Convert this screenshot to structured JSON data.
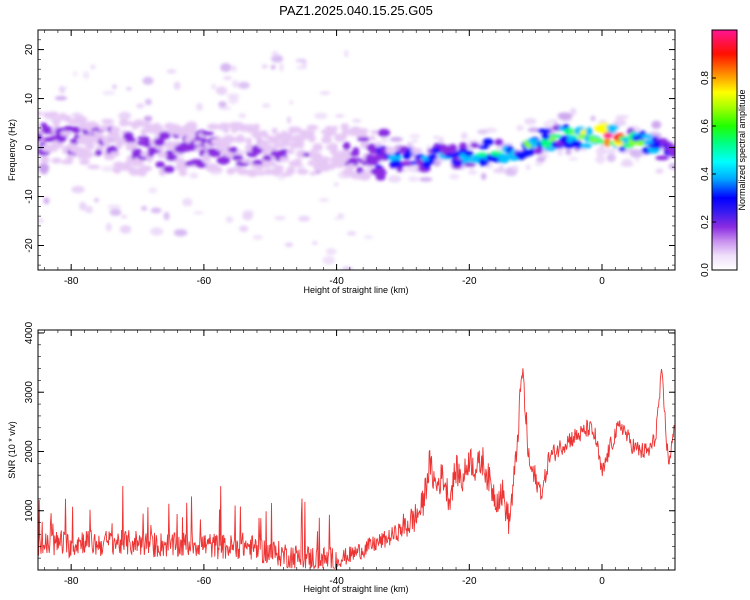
{
  "figure": {
    "title": "PAZ1.2025.040.15.25.G05"
  },
  "chart_data": [
    {
      "type": "heatmap",
      "title": "PAZ1.2025.040.15.25.G05",
      "xlabel": "Height of straight line (km)",
      "ylabel": "Frequency (Hz)",
      "xlim": [
        -85,
        11
      ],
      "ylim": [
        -25,
        24
      ],
      "xticks": [
        "-80",
        "-60",
        "-40",
        "-20",
        "0"
      ],
      "yticks": [
        "-20",
        "-10",
        "0",
        "10",
        "20"
      ],
      "colorbar": {
        "label": "Normalized spectral amplitude",
        "range": [
          0,
          1
        ],
        "ticks": [
          "0.0",
          "0.2",
          "0.4",
          "0.6",
          "0.8"
        ],
        "colors": [
          "#ffffff",
          "#e6c8f5",
          "#8a2be2",
          "#1010ff",
          "#00c0ff",
          "#00ff80",
          "#7fff00",
          "#ffff00",
          "#ff8000",
          "#ff0000",
          "#ff1493"
        ]
      },
      "ridge": {
        "x": [
          -85,
          -80,
          -75,
          -70,
          -65,
          -60,
          -55,
          -50,
          -45,
          -40,
          -35,
          -30,
          -25,
          -20,
          -15,
          -10,
          -5,
          0,
          5,
          10
        ],
        "center_freq": [
          2.5,
          1.5,
          0.5,
          0,
          -0.5,
          0,
          0,
          -1,
          -1,
          -0.5,
          -1.5,
          -2.5,
          -2,
          -1.5,
          -0.5,
          1,
          2.5,
          2.5,
          1,
          -0.5
        ],
        "amplitude": [
          0.22,
          0.2,
          0.18,
          0.18,
          0.2,
          0.2,
          0.18,
          0.15,
          0.15,
          0.15,
          0.25,
          0.35,
          0.38,
          0.45,
          0.55,
          0.5,
          0.5,
          0.95,
          0.6,
          0.3
        ]
      }
    },
    {
      "type": "line",
      "xlabel": "Height of straight line (km)",
      "ylabel": "SNR (10 * v/v)",
      "xlim": [
        -85,
        11
      ],
      "ylim": [
        0,
        4050
      ],
      "xticks": [
        "-80",
        "-60",
        "-40",
        "-20",
        "0"
      ],
      "yticks": [
        "1000",
        "2000",
        "3000",
        "4000"
      ],
      "color": "#ee3333",
      "series": [
        {
          "x": [
            -85,
            -82,
            -80,
            -78,
            -76,
            -74,
            -72,
            -70,
            -68,
            -66,
            -64,
            -62,
            -60,
            -58,
            -56,
            -54,
            -52,
            -50,
            -48,
            -46,
            -44,
            -42,
            -40,
            -38,
            -36,
            -34,
            -32,
            -30,
            -28,
            -27,
            -26,
            -25,
            -24,
            -23,
            -22,
            -21,
            -20,
            -19,
            -18,
            -17,
            -16,
            -15,
            -14,
            -13,
            -12,
            -11.5,
            -11,
            -10,
            -9,
            -8,
            -7,
            -6,
            -5,
            -4,
            -3,
            -2,
            -1,
            0,
            1,
            2,
            3,
            4,
            5,
            6,
            7,
            8,
            9,
            10,
            11
          ],
          "values": [
            400,
            450,
            420,
            500,
            430,
            480,
            450,
            470,
            420,
            430,
            400,
            450,
            430,
            400,
            380,
            420,
            350,
            300,
            260,
            220,
            200,
            180,
            170,
            250,
            350,
            450,
            550,
            700,
            900,
            1100,
            1800,
            1400,
            1600,
            1200,
            1700,
            1500,
            1900,
            1700,
            1850,
            1500,
            1200,
            1300,
            800,
            1800,
            3400,
            2600,
            1800,
            1500,
            1300,
            1900,
            2000,
            2100,
            2200,
            2250,
            2300,
            2400,
            2250,
            1600,
            2000,
            2300,
            2450,
            2200,
            2050,
            2000,
            2000,
            2200,
            3300,
            1800,
            2400
          ]
        }
      ]
    }
  ]
}
